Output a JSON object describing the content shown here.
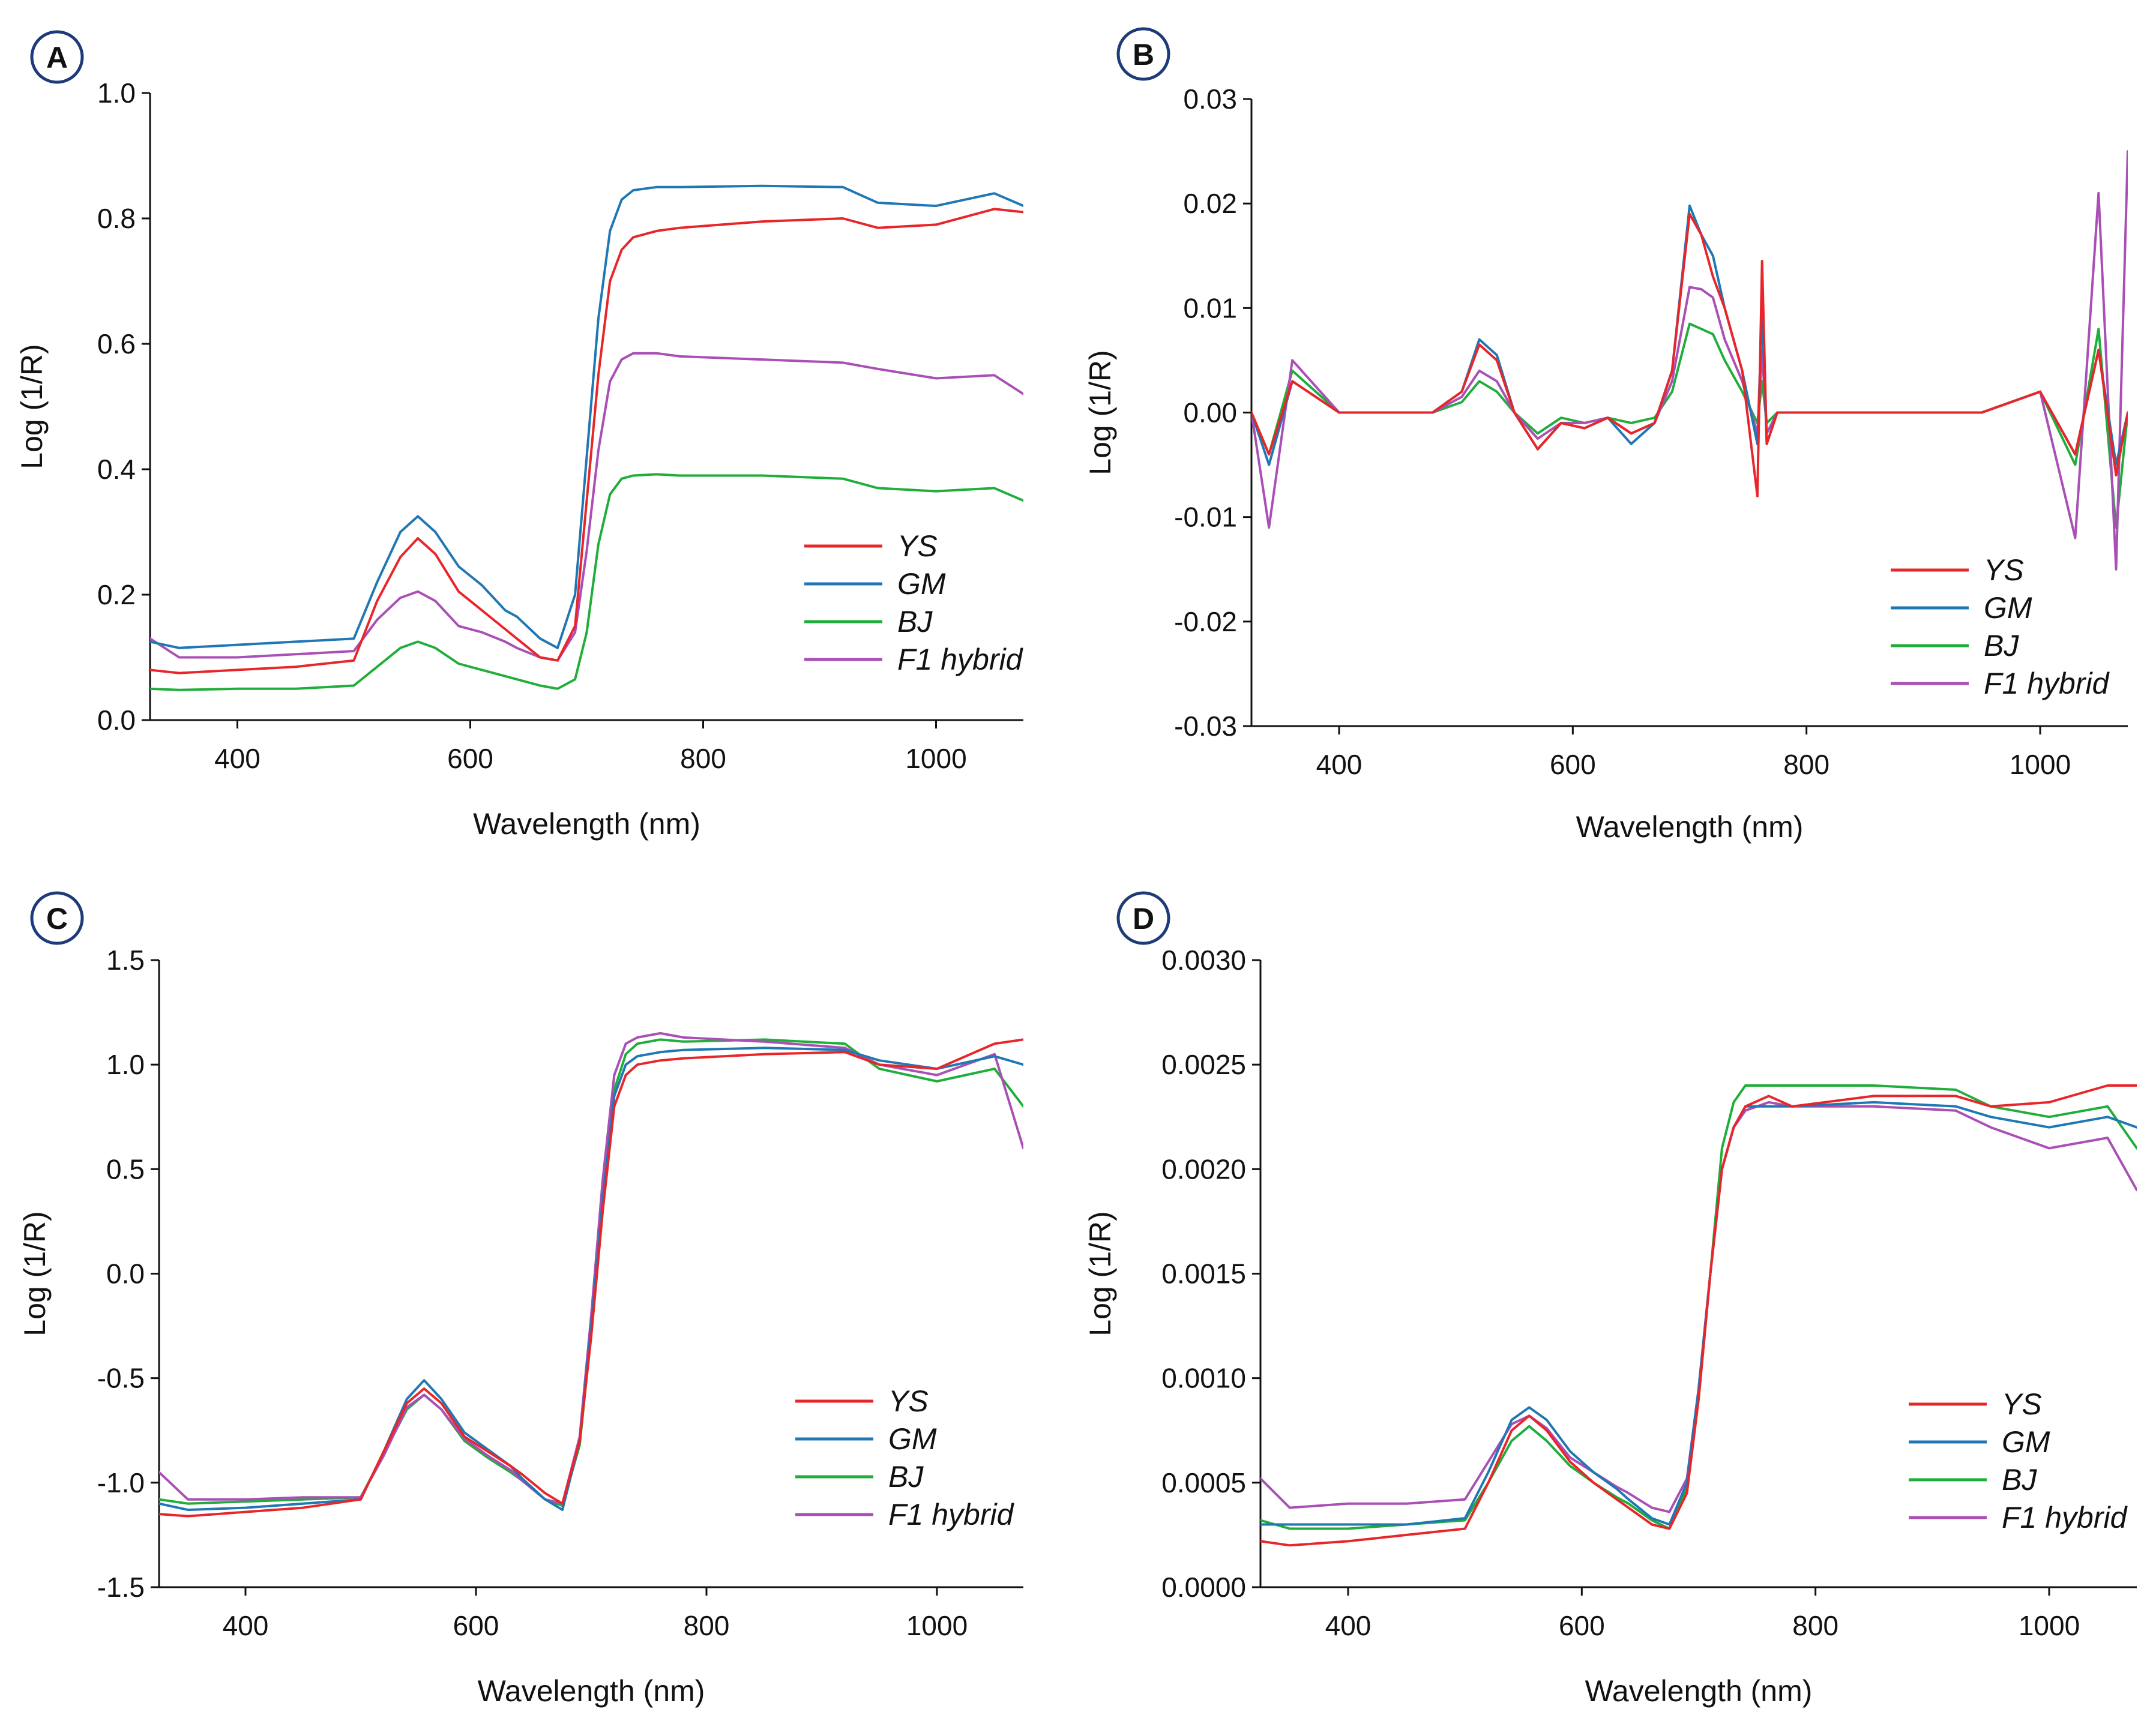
{
  "figure": {
    "panels": [
      "A",
      "B",
      "C",
      "D"
    ]
  },
  "legend": {
    "items": [
      {
        "name": "YS",
        "color": "#e8262a"
      },
      {
        "name": "GM",
        "color": "#1f77b4"
      },
      {
        "name": "BJ",
        "color": "#1fae3a"
      },
      {
        "name": "F1 hybrid",
        "color": "#a94fb5"
      }
    ]
  },
  "chart_data": [
    {
      "panel": "A",
      "type": "line",
      "xlabel": "Wavelength (nm)",
      "ylabel": "Log (1/R)",
      "xlim": [
        325,
        1075
      ],
      "ylim": [
        0.0,
        1.0
      ],
      "xticks": [
        400,
        600,
        800,
        1000
      ],
      "yticks": [
        0.0,
        0.2,
        0.4,
        0.6,
        0.8,
        1.0
      ],
      "ytick_labels": [
        "0.0",
        "0.2",
        "0.4",
        "0.6",
        "0.8",
        "1.0"
      ],
      "legend_position": "bottom-right",
      "x": [
        325,
        350,
        400,
        450,
        500,
        520,
        540,
        555,
        570,
        590,
        610,
        630,
        640,
        660,
        675,
        690,
        700,
        710,
        720,
        730,
        740,
        760,
        780,
        850,
        920,
        950,
        1000,
        1050,
        1075
      ],
      "series": [
        {
          "name": "YS",
          "values": [
            0.08,
            0.075,
            0.08,
            0.085,
            0.095,
            0.19,
            0.26,
            0.29,
            0.265,
            0.205,
            0.175,
            0.145,
            0.13,
            0.1,
            0.095,
            0.15,
            0.35,
            0.55,
            0.7,
            0.75,
            0.77,
            0.78,
            0.785,
            0.795,
            0.8,
            0.785,
            0.79,
            0.815,
            0.81
          ]
        },
        {
          "name": "GM",
          "values": [
            0.125,
            0.115,
            0.12,
            0.125,
            0.13,
            0.22,
            0.3,
            0.325,
            0.3,
            0.245,
            0.215,
            0.175,
            0.165,
            0.13,
            0.115,
            0.2,
            0.42,
            0.64,
            0.78,
            0.83,
            0.845,
            0.85,
            0.85,
            0.852,
            0.85,
            0.825,
            0.82,
            0.84,
            0.82
          ]
        },
        {
          "name": "BJ",
          "values": [
            0.05,
            0.048,
            0.05,
            0.05,
            0.055,
            0.085,
            0.115,
            0.125,
            0.115,
            0.09,
            0.08,
            0.07,
            0.065,
            0.055,
            0.05,
            0.065,
            0.14,
            0.28,
            0.36,
            0.385,
            0.39,
            0.392,
            0.39,
            0.39,
            0.385,
            0.37,
            0.365,
            0.37,
            0.35
          ]
        },
        {
          "name": "F1 hybrid",
          "values": [
            0.13,
            0.1,
            0.1,
            0.105,
            0.11,
            0.16,
            0.195,
            0.205,
            0.19,
            0.15,
            0.14,
            0.125,
            0.115,
            0.1,
            0.095,
            0.14,
            0.27,
            0.43,
            0.54,
            0.575,
            0.585,
            0.585,
            0.58,
            0.575,
            0.57,
            0.56,
            0.545,
            0.55,
            0.52
          ]
        }
      ]
    },
    {
      "panel": "B",
      "type": "line",
      "xlabel": "Wavelength (nm)",
      "ylabel": "Log (1/R)",
      "xlim": [
        325,
        1075
      ],
      "ylim": [
        -0.03,
        0.03
      ],
      "xticks": [
        400,
        600,
        800,
        1000
      ],
      "yticks": [
        -0.03,
        -0.02,
        -0.01,
        0.0,
        0.01,
        0.02,
        0.03
      ],
      "ytick_labels": [
        "-0.03",
        "-0.02",
        "-0.01",
        "0.00",
        "0.01",
        "0.02",
        "0.03"
      ],
      "legend_position": "bottom-right",
      "x": [
        325,
        340,
        360,
        400,
        480,
        505,
        520,
        535,
        550,
        570,
        590,
        610,
        630,
        650,
        670,
        685,
        700,
        710,
        720,
        730,
        745,
        758,
        762,
        766,
        775,
        800,
        900,
        950,
        1000,
        1030,
        1050,
        1065,
        1075
      ],
      "series": [
        {
          "name": "YS",
          "values": [
            0.0,
            -0.004,
            0.003,
            0.0,
            0.0,
            0.002,
            0.0065,
            0.005,
            0.0,
            -0.0035,
            -0.001,
            -0.0015,
            -0.0005,
            -0.002,
            -0.001,
            0.004,
            0.019,
            0.017,
            0.013,
            0.01,
            0.004,
            -0.008,
            0.0145,
            -0.003,
            0.0,
            0.0,
            0.0,
            0.0,
            0.002,
            -0.004,
            0.006,
            -0.006,
            0.0
          ]
        },
        {
          "name": "GM",
          "values": [
            0.0,
            -0.005,
            0.003,
            0.0,
            0.0,
            0.002,
            0.007,
            0.0055,
            0.0,
            -0.0035,
            -0.001,
            -0.0015,
            -0.0005,
            -0.003,
            -0.001,
            0.004,
            0.0198,
            0.017,
            0.015,
            0.01,
            0.004,
            -0.003,
            0.01,
            -0.003,
            0.0,
            0.0,
            0.0,
            0.0,
            0.002,
            -0.004,
            0.006,
            -0.005,
            0.0
          ]
        },
        {
          "name": "BJ",
          "values": [
            0.0,
            -0.004,
            0.004,
            0.0,
            0.0,
            0.001,
            0.003,
            0.002,
            0.0,
            -0.002,
            -0.0005,
            -0.001,
            -0.0005,
            -0.001,
            -0.0005,
            0.002,
            0.0085,
            0.008,
            0.0075,
            0.005,
            0.002,
            -0.001,
            0.003,
            -0.001,
            0.0,
            0.0,
            0.0,
            0.0,
            0.002,
            -0.005,
            0.008,
            -0.011,
            0.0
          ]
        },
        {
          "name": "F1 hybrid",
          "values": [
            0.0,
            -0.011,
            0.005,
            0.0,
            0.0,
            0.0015,
            0.004,
            0.003,
            0.0,
            -0.0025,
            -0.001,
            -0.001,
            -0.0005,
            -0.002,
            -0.001,
            0.003,
            0.012,
            0.0118,
            0.011,
            0.007,
            0.003,
            -0.002,
            0.006,
            -0.002,
            0.0,
            0.0,
            0.0,
            0.0,
            0.002,
            -0.012,
            0.021,
            -0.015,
            0.025
          ]
        }
      ]
    },
    {
      "panel": "C",
      "type": "line",
      "xlabel": "Wavelength (nm)",
      "ylabel": "Log (1/R)",
      "xlim": [
        325,
        1075
      ],
      "ylim": [
        -1.5,
        1.5
      ],
      "xticks": [
        400,
        600,
        800,
        1000
      ],
      "yticks": [
        -1.5,
        -1.0,
        -0.5,
        0.0,
        0.5,
        1.0,
        1.5
      ],
      "ytick_labels": [
        "-1.5",
        "-1.0",
        "-0.5",
        "0.0",
        "0.5",
        "1.0",
        "1.5"
      ],
      "legend_position": "bottom-right",
      "x": [
        325,
        350,
        400,
        450,
        500,
        520,
        540,
        555,
        570,
        590,
        610,
        630,
        640,
        660,
        675,
        690,
        700,
        710,
        720,
        730,
        740,
        760,
        780,
        850,
        920,
        950,
        1000,
        1050,
        1075
      ],
      "series": [
        {
          "name": "YS",
          "values": [
            -1.15,
            -1.16,
            -1.14,
            -1.12,
            -1.08,
            -0.85,
            -0.62,
            -0.55,
            -0.62,
            -0.78,
            -0.85,
            -0.92,
            -0.96,
            -1.05,
            -1.1,
            -0.8,
            -0.3,
            0.3,
            0.8,
            0.95,
            1.0,
            1.02,
            1.03,
            1.05,
            1.06,
            1.0,
            0.98,
            1.1,
            1.12
          ]
        },
        {
          "name": "GM",
          "values": [
            -1.1,
            -1.13,
            -1.12,
            -1.1,
            -1.08,
            -0.85,
            -0.6,
            -0.51,
            -0.6,
            -0.76,
            -0.84,
            -0.92,
            -0.98,
            -1.08,
            -1.13,
            -0.8,
            -0.25,
            0.35,
            0.85,
            1.0,
            1.04,
            1.06,
            1.07,
            1.08,
            1.07,
            1.02,
            0.98,
            1.04,
            1.0
          ]
        },
        {
          "name": "BJ",
          "values": [
            -1.08,
            -1.1,
            -1.09,
            -1.08,
            -1.07,
            -0.86,
            -0.65,
            -0.58,
            -0.65,
            -0.8,
            -0.88,
            -0.95,
            -0.99,
            -1.08,
            -1.11,
            -0.82,
            -0.28,
            0.35,
            0.88,
            1.05,
            1.1,
            1.12,
            1.11,
            1.12,
            1.1,
            0.98,
            0.92,
            0.98,
            0.8
          ]
        },
        {
          "name": "F1 hybrid",
          "values": [
            -0.95,
            -1.08,
            -1.08,
            -1.07,
            -1.07,
            -0.87,
            -0.64,
            -0.58,
            -0.65,
            -0.79,
            -0.87,
            -0.94,
            -0.99,
            -1.08,
            -1.1,
            -0.78,
            -0.2,
            0.45,
            0.95,
            1.1,
            1.13,
            1.15,
            1.13,
            1.11,
            1.08,
            1.0,
            0.95,
            1.05,
            0.6
          ]
        }
      ]
    },
    {
      "panel": "D",
      "type": "line",
      "xlabel": "Wavelength (nm)",
      "ylabel": "Log (1/R)",
      "xlim": [
        325,
        1075
      ],
      "ylim": [
        0.0,
        0.003
      ],
      "xticks": [
        400,
        600,
        800,
        1000
      ],
      "yticks": [
        0.0,
        0.0005,
        0.001,
        0.0015,
        0.002,
        0.0025,
        0.003
      ],
      "ytick_labels": [
        "0.0000",
        "0.0005",
        "0.0010",
        "0.0015",
        "0.0020",
        "0.0025",
        "0.0030"
      ],
      "legend_position": "bottom-right",
      "x": [
        325,
        350,
        400,
        450,
        500,
        520,
        540,
        555,
        570,
        590,
        610,
        630,
        640,
        660,
        675,
        690,
        700,
        710,
        720,
        730,
        740,
        760,
        780,
        850,
        920,
        950,
        1000,
        1050,
        1075
      ],
      "series": [
        {
          "name": "YS",
          "values": [
            0.00022,
            0.0002,
            0.00022,
            0.00025,
            0.00028,
            0.0005,
            0.00075,
            0.00082,
            0.00075,
            0.0006,
            0.0005,
            0.00042,
            0.00038,
            0.0003,
            0.00028,
            0.00045,
            0.0009,
            0.0015,
            0.002,
            0.0022,
            0.0023,
            0.00235,
            0.0023,
            0.00235,
            0.00235,
            0.0023,
            0.00232,
            0.0024,
            0.0024
          ]
        },
        {
          "name": "GM",
          "values": [
            0.0003,
            0.0003,
            0.0003,
            0.0003,
            0.00033,
            0.00055,
            0.0008,
            0.00086,
            0.0008,
            0.00065,
            0.00055,
            0.00047,
            0.00042,
            0.00033,
            0.0003,
            0.0005,
            0.00095,
            0.0015,
            0.002,
            0.0022,
            0.0023,
            0.0023,
            0.0023,
            0.00232,
            0.0023,
            0.00225,
            0.0022,
            0.00225,
            0.0022
          ]
        },
        {
          "name": "BJ",
          "values": [
            0.00032,
            0.00028,
            0.00028,
            0.0003,
            0.00032,
            0.0005,
            0.0007,
            0.00077,
            0.0007,
            0.00058,
            0.0005,
            0.00043,
            0.0004,
            0.00032,
            0.00028,
            0.00048,
            0.0009,
            0.0015,
            0.0021,
            0.00232,
            0.0024,
            0.0024,
            0.0024,
            0.0024,
            0.00238,
            0.0023,
            0.00225,
            0.0023,
            0.0021
          ]
        },
        {
          "name": "F1 hybrid",
          "values": [
            0.00052,
            0.00038,
            0.0004,
            0.0004,
            0.00042,
            0.0006,
            0.00078,
            0.00082,
            0.00076,
            0.00062,
            0.00055,
            0.00048,
            0.00045,
            0.00038,
            0.00036,
            0.00052,
            0.00095,
            0.0015,
            0.002,
            0.0022,
            0.00228,
            0.00232,
            0.0023,
            0.0023,
            0.00228,
            0.0022,
            0.0021,
            0.00215,
            0.0019
          ]
        }
      ]
    }
  ]
}
